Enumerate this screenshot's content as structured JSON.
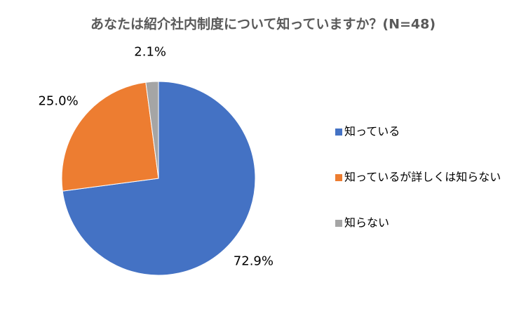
{
  "chart_data": {
    "type": "pie",
    "title": "あなたは紹介社内制度について知っていますか？(N=48)",
    "categories": [
      "知っている",
      "知っているが詳しくは知らない",
      "知らない"
    ],
    "values": [
      72.9,
      25.0,
      2.1
    ],
    "value_labels": [
      "72.9%",
      "25.0%",
      "2.1%"
    ],
    "colors": [
      "#4472c4",
      "#ed7d31",
      "#a5a5a5"
    ],
    "legend": "right"
  }
}
